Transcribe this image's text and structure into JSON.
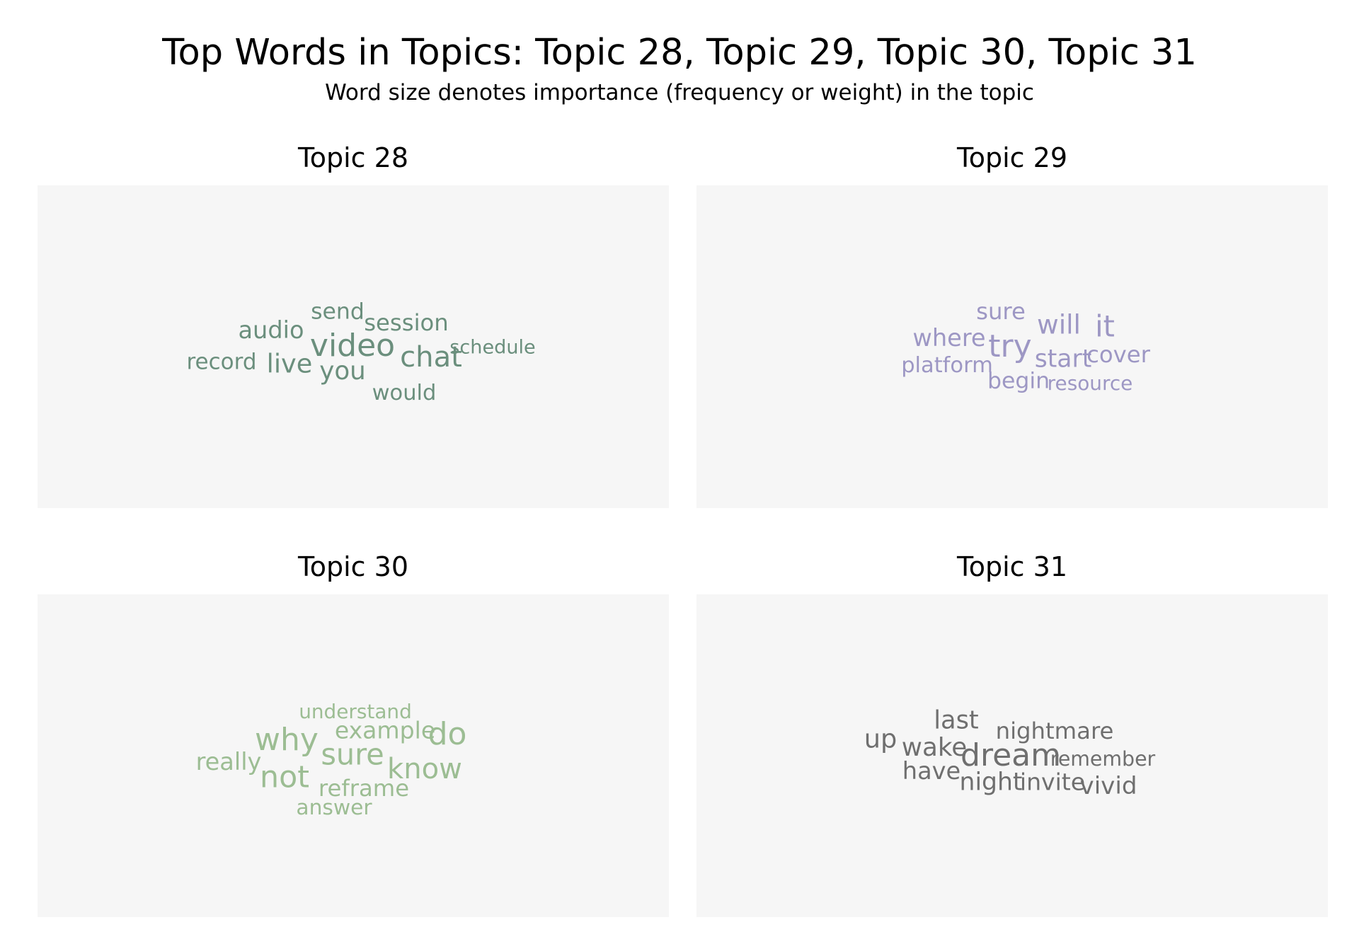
{
  "title": "Top Words in Topics: Topic 28, Topic 29, Topic 30, Topic 31",
  "subtitle": "Word size denotes importance (frequency or weight) in the topic",
  "chart_data": [
    {
      "type": "wordcloud",
      "title": "Topic 28",
      "color": "#6b8f7d",
      "words": [
        {
          "text": "video",
          "weight": 1.0
        },
        {
          "text": "chat",
          "weight": 0.85
        },
        {
          "text": "live",
          "weight": 0.72
        },
        {
          "text": "you",
          "weight": 0.68
        },
        {
          "text": "audio",
          "weight": 0.6
        },
        {
          "text": "session",
          "weight": 0.55
        },
        {
          "text": "send",
          "weight": 0.52
        },
        {
          "text": "record",
          "weight": 0.5
        },
        {
          "text": "would",
          "weight": 0.48
        },
        {
          "text": "schedule",
          "weight": 0.35
        }
      ]
    },
    {
      "type": "wordcloud",
      "title": "Topic 29",
      "color": "#9d97c4",
      "words": [
        {
          "text": "try",
          "weight": 1.0
        },
        {
          "text": "it",
          "weight": 0.9
        },
        {
          "text": "will",
          "weight": 0.75
        },
        {
          "text": "start",
          "weight": 0.64
        },
        {
          "text": "where",
          "weight": 0.6
        },
        {
          "text": "cover",
          "weight": 0.55
        },
        {
          "text": "sure",
          "weight": 0.55
        },
        {
          "text": "begin",
          "weight": 0.52
        },
        {
          "text": "platform",
          "weight": 0.48
        },
        {
          "text": "resource",
          "weight": 0.38
        }
      ]
    },
    {
      "type": "wordcloud",
      "title": "Topic 30",
      "color": "#9cbd93",
      "words": [
        {
          "text": "why",
          "weight": 1.0
        },
        {
          "text": "do",
          "weight": 1.0
        },
        {
          "text": "not",
          "weight": 0.95
        },
        {
          "text": "sure",
          "weight": 0.9
        },
        {
          "text": "know",
          "weight": 0.85
        },
        {
          "text": "really",
          "weight": 0.6
        },
        {
          "text": "example",
          "weight": 0.58
        },
        {
          "text": "reframe",
          "weight": 0.55
        },
        {
          "text": "answer",
          "weight": 0.45
        },
        {
          "text": "understand",
          "weight": 0.38
        }
      ]
    },
    {
      "type": "wordcloud",
      "title": "Topic 31",
      "color": "#6f6f6f",
      "words": [
        {
          "text": "dream",
          "weight": 1.0
        },
        {
          "text": "up",
          "weight": 0.72
        },
        {
          "text": "wake",
          "weight": 0.68
        },
        {
          "text": "last",
          "weight": 0.66
        },
        {
          "text": "night",
          "weight": 0.64
        },
        {
          "text": "vivid",
          "weight": 0.62
        },
        {
          "text": "have",
          "weight": 0.6
        },
        {
          "text": "invite",
          "weight": 0.58
        },
        {
          "text": "nightmare",
          "weight": 0.55
        },
        {
          "text": "remember",
          "weight": 0.4
        }
      ]
    }
  ]
}
